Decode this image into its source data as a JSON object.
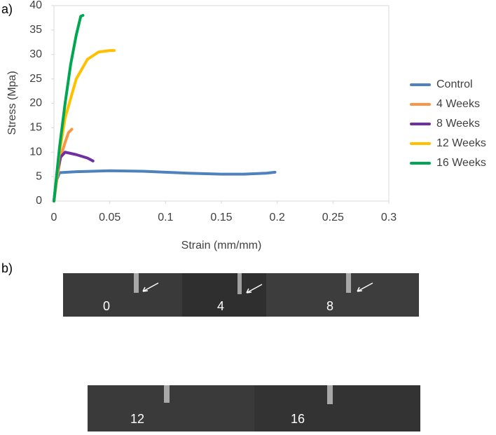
{
  "panels": [
    "a)",
    "b)"
  ],
  "chart_data": {
    "type": "line",
    "xlabel": "Strain (mm/mm)",
    "ylabel": "Stress (Mpa)",
    "xlim": [
      0,
      0.3
    ],
    "xticks": [
      0,
      0.05,
      0.1,
      0.15,
      0.2,
      0.25,
      0.3
    ],
    "ylim": [
      0,
      40
    ],
    "yticks": [
      0,
      5,
      10,
      15,
      20,
      25,
      30,
      35,
      40
    ],
    "grid": false,
    "legend": "right",
    "series": [
      {
        "name": "Control",
        "color": "#4f81bd",
        "x": [
          0,
          0.002,
          0.005,
          0.02,
          0.05,
          0.08,
          0.1,
          0.12,
          0.15,
          0.17,
          0.19,
          0.198
        ],
        "values": [
          0,
          4,
          5.8,
          6,
          6.2,
          6.1,
          5.9,
          5.7,
          5.5,
          5.5,
          5.7,
          5.9
        ]
      },
      {
        "name": "4 Weeks",
        "color": "#f79646",
        "x": [
          0,
          0.003,
          0.006,
          0.01,
          0.013,
          0.016
        ],
        "values": [
          0,
          5,
          9,
          12,
          14,
          14.7
        ]
      },
      {
        "name": "8 Weeks",
        "color": "#7030a0",
        "x": [
          0,
          0.003,
          0.006,
          0.01,
          0.02,
          0.03,
          0.035
        ],
        "values": [
          0,
          6,
          9,
          10,
          9.5,
          8.8,
          8.2
        ]
      },
      {
        "name": "12 Weeks",
        "color": "#ffc000",
        "x": [
          0,
          0.005,
          0.01,
          0.02,
          0.03,
          0.04,
          0.05,
          0.054
        ],
        "values": [
          0,
          10,
          17,
          25,
          29,
          30.5,
          30.8,
          30.8
        ]
      },
      {
        "name": "16 Weeks",
        "color": "#00a651",
        "x": [
          0,
          0.005,
          0.01,
          0.015,
          0.02,
          0.024,
          0.026
        ],
        "values": [
          0,
          11,
          20,
          28,
          34,
          37.8,
          38
        ]
      }
    ]
  },
  "specimens": [
    "0",
    "4",
    "8",
    "12",
    "16"
  ]
}
